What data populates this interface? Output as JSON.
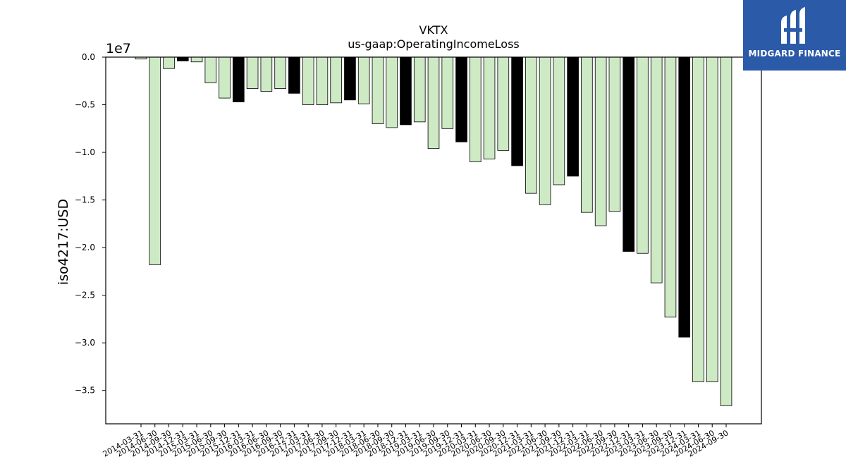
{
  "chart_data": {
    "type": "bar",
    "title": "VKTX",
    "subtitle": "us-gaap:OperatingIncomeLoss",
    "ylabel": "iso4217:USD",
    "xlabel": "",
    "offset_label": "1e7",
    "ylim": [
      -38500000,
      0
    ],
    "yticks": [
      0,
      -5000000,
      -10000000,
      -15000000,
      -20000000,
      -25000000,
      -30000000,
      -35000000
    ],
    "ytick_labels": [
      "0.0",
      "−0.5",
      "−1.0",
      "−1.5",
      "−2.0",
      "−2.5",
      "−3.0",
      "−3.5"
    ],
    "grid": false,
    "categories": [
      "2014-03-31",
      "2014-06-30",
      "2014-09-30",
      "2014-12-31",
      "2015-03-31",
      "2015-06-30",
      "2015-09-30",
      "2015-12-31",
      "2016-03-31",
      "2016-06-30",
      "2016-09-30",
      "2016-12-31",
      "2017-03-31",
      "2017-06-30",
      "2017-09-30",
      "2017-12-31",
      "2018-03-31",
      "2018-06-30",
      "2018-09-30",
      "2018-12-31",
      "2019-03-31",
      "2019-06-30",
      "2019-09-30",
      "2019-12-31",
      "2020-03-31",
      "2020-06-30",
      "2020-09-30",
      "2020-12-31",
      "2021-03-31",
      "2021-06-30",
      "2021-09-30",
      "2021-12-31",
      "2022-03-31",
      "2022-06-30",
      "2022-09-30",
      "2022-12-31",
      "2023-03-31",
      "2023-06-30",
      "2023-09-30",
      "2023-12-31",
      "2024-03-31",
      "2024-06-30",
      "2024-09-30"
    ],
    "values": [
      -200000,
      -21800000,
      -1200000,
      -400000,
      -500000,
      -2700000,
      -4300000,
      -4700000,
      -3300000,
      -3600000,
      -3300000,
      -3800000,
      -5000000,
      -5000000,
      -4800000,
      -4500000,
      -4900000,
      -7000000,
      -7400000,
      -7100000,
      -6800000,
      -9600000,
      -7500000,
      -8900000,
      -11000000,
      -10700000,
      -9800000,
      -11400000,
      -14300000,
      -15500000,
      -13400000,
      -12500000,
      -16300000,
      -17700000,
      -16200000,
      -20400000,
      -20600000,
      -23700000,
      -27300000,
      -29400000,
      -34100000,
      -34100000,
      -36600000
    ],
    "highlight_index_note": "",
    "colors": {
      "normal": "#cdeac4",
      "highlight": "#000000",
      "edge": "#000000"
    },
    "highlight": [
      false,
      false,
      false,
      true,
      false,
      false,
      false,
      true,
      false,
      false,
      false,
      true,
      false,
      false,
      false,
      true,
      false,
      false,
      false,
      true,
      false,
      false,
      false,
      true,
      false,
      false,
      false,
      true,
      false,
      false,
      false,
      true,
      false,
      false,
      false,
      true,
      false,
      false,
      false,
      true,
      false,
      false,
      false
    ]
  },
  "logo": {
    "name": "MIDGARD FINANCE"
  }
}
